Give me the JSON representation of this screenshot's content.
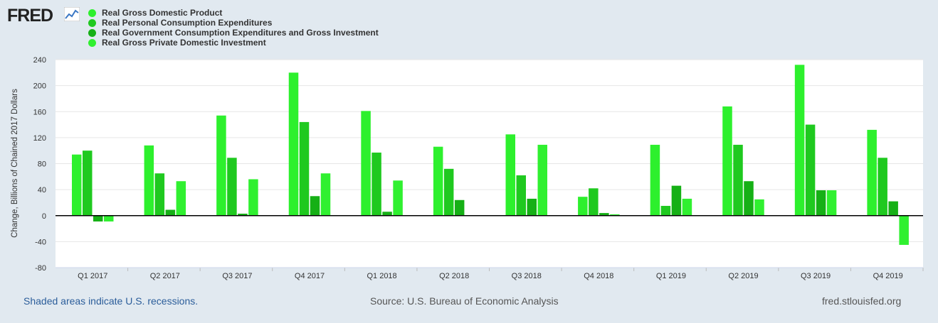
{
  "brand": {
    "logo_text": "FRED"
  },
  "footer": {
    "recession_note": "Shaded areas indicate U.S. recessions.",
    "source": "Source: U.S. Bureau of Economic Analysis",
    "site": "fred.stlouisfed.org"
  },
  "colors": {
    "gdp": "#2df02d",
    "pce": "#1fc91f",
    "gov": "#16b016",
    "inv": "#30f030",
    "background": "#e1e9f0",
    "plot_bg": "#ffffff",
    "grid": "#e6e6e6"
  },
  "chart_data": {
    "type": "bar",
    "title": "",
    "xlabel": "",
    "ylabel": "Change, Billions of Chained 2017 Dollars",
    "ylim": [
      -80,
      240
    ],
    "yticks": [
      -80,
      -40,
      0,
      40,
      80,
      120,
      160,
      200,
      240
    ],
    "grid": true,
    "legend_position": "top-left",
    "categories": [
      "Q1 2017",
      "Q2 2017",
      "Q3 2017",
      "Q4 2017",
      "Q1 2018",
      "Q2 2018",
      "Q3 2018",
      "Q4 2018",
      "Q1 2019",
      "Q2 2019",
      "Q3 2019",
      "Q4 2019"
    ],
    "series": [
      {
        "name": "Real Gross Domestic Product",
        "color": "#2df02d",
        "values": [
          94,
          108,
          154,
          220,
          161,
          106,
          125,
          29,
          109,
          168,
          232,
          132
        ]
      },
      {
        "name": "Real Personal Consumption Expenditures",
        "color": "#1fc91f",
        "values": [
          100,
          65,
          89,
          144,
          97,
          72,
          62,
          42,
          15,
          109,
          140,
          89
        ]
      },
      {
        "name": "Real Government Consumption Expenditures and Gross Investment",
        "color": "#16b016",
        "values": [
          -9,
          9,
          3,
          30,
          6,
          24,
          26,
          4,
          46,
          53,
          39,
          22
        ]
      },
      {
        "name": "Real Gross Private Domestic Investment",
        "color": "#30f030",
        "values": [
          -9,
          53,
          56,
          65,
          54,
          0,
          109,
          2,
          26,
          25,
          39,
          -45
        ]
      }
    ]
  }
}
